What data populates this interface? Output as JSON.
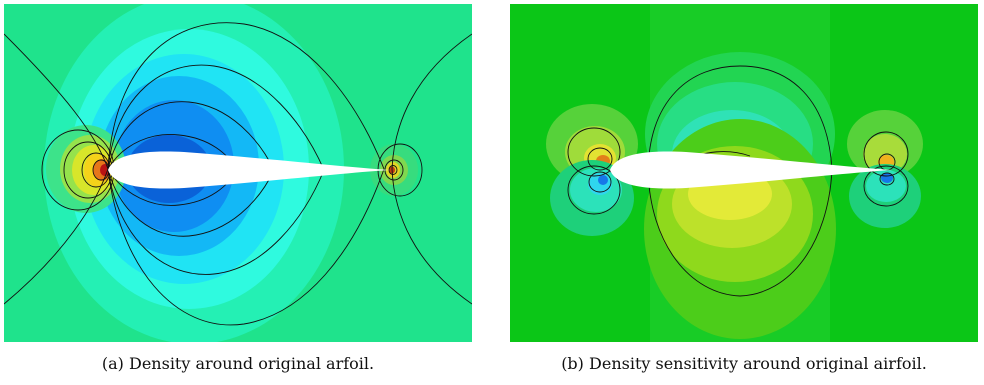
{
  "figure": {
    "panels": [
      {
        "label": "(a)",
        "caption": "Density around original arfoil."
      },
      {
        "label": "(b)",
        "caption": "Density sensitivity around original airfoil."
      }
    ]
  }
}
